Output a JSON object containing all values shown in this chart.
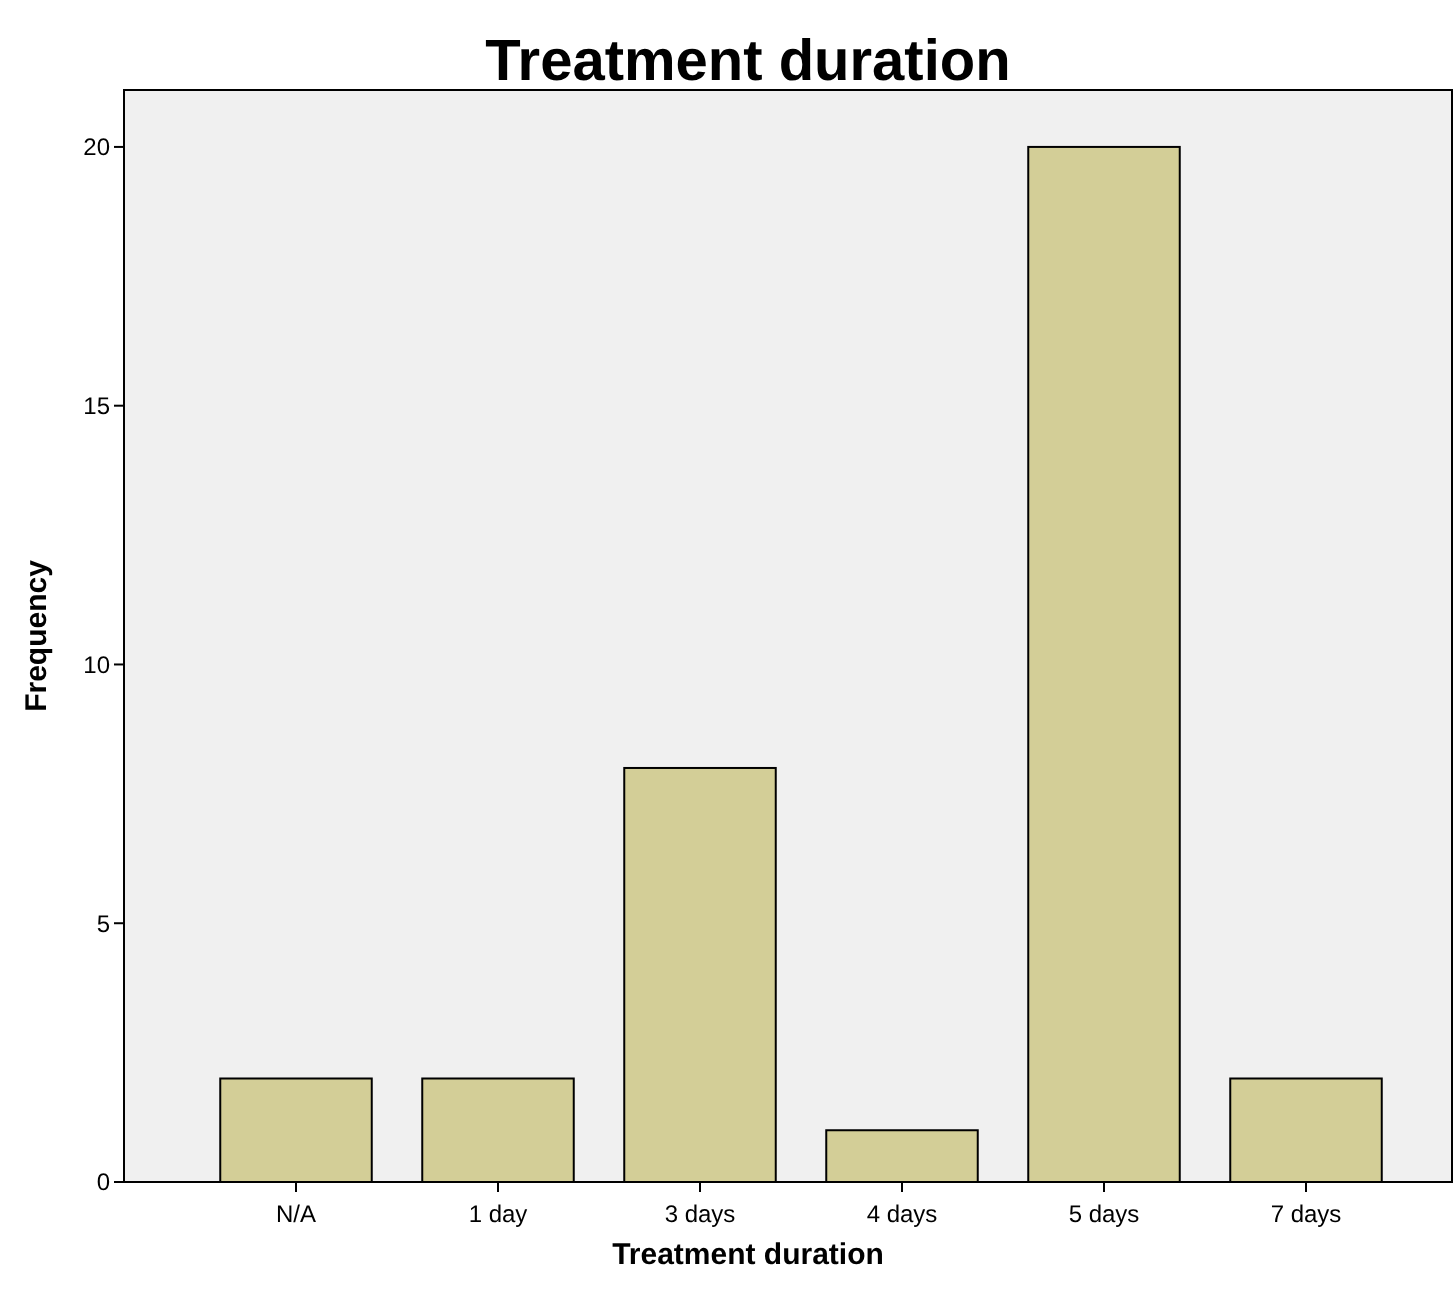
{
  "chart_data": {
    "type": "bar",
    "title": "Treatment duration",
    "xlabel": "Treatment duration",
    "ylabel": "Frequency",
    "categories": [
      "N/A",
      "1 day",
      "3 days",
      "4 days",
      "5 days",
      "7 days"
    ],
    "values": [
      2,
      2,
      8,
      1,
      20,
      2
    ],
    "color": "#d3ce97",
    "ylim": [
      0,
      21.1
    ],
    "yticks": [
      0,
      5,
      10,
      15,
      20
    ],
    "grid": false
  }
}
